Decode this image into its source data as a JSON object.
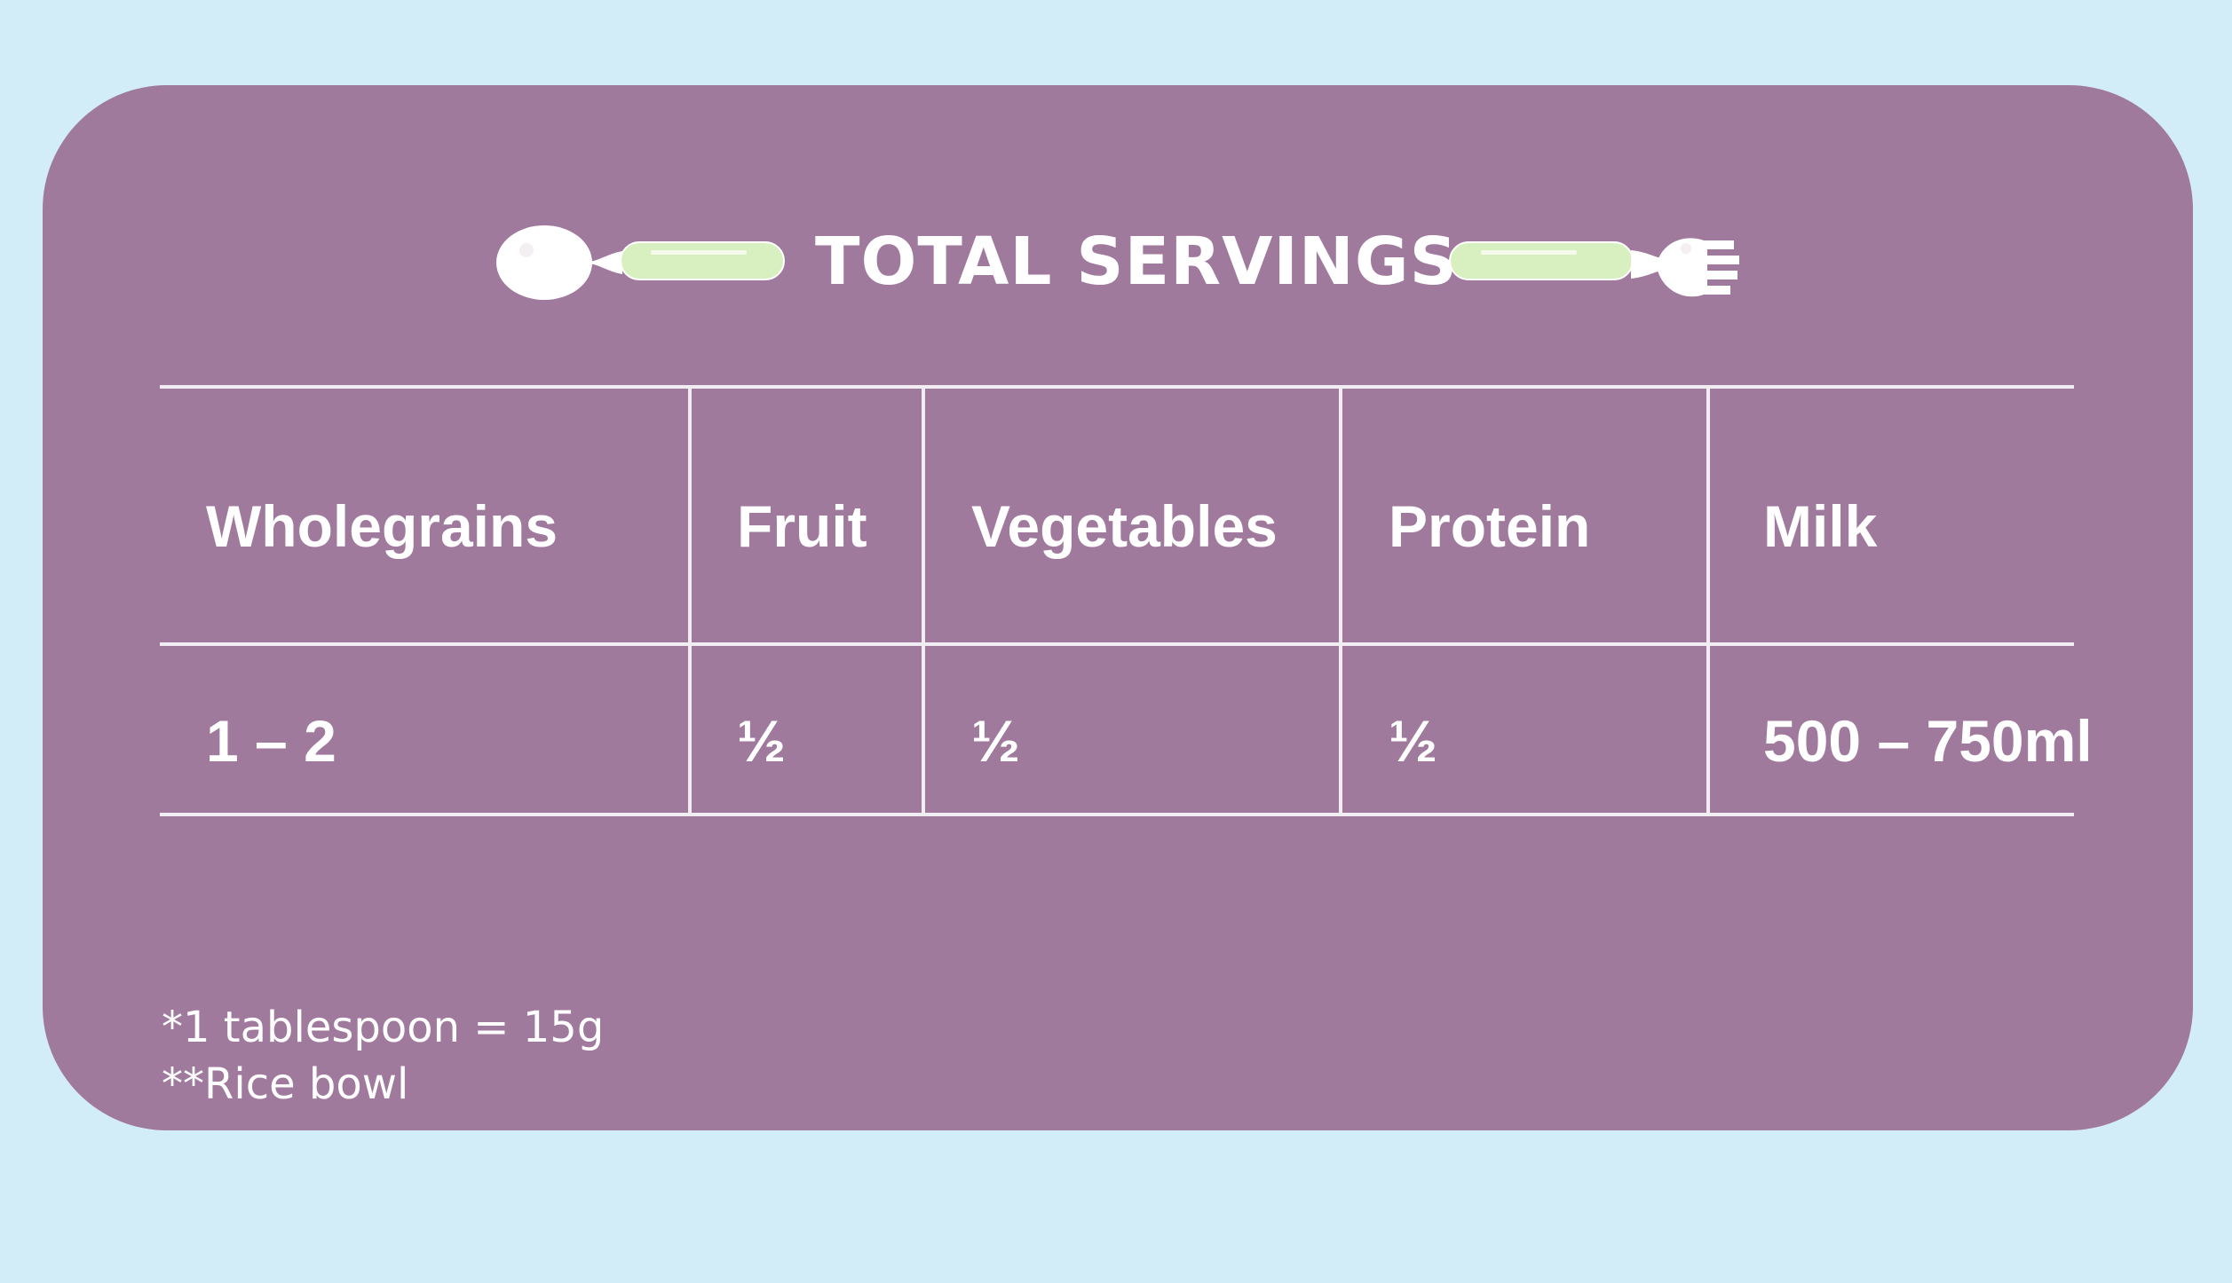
{
  "colors": {
    "background": "#d3edf8",
    "card": "#a07a9d",
    "text": "#ffffff",
    "lines": "#f2edf3",
    "handle": "#d8efbf",
    "utensil": "#ffffff"
  },
  "header": {
    "title": "TOTAL SERVINGS",
    "left_icon": "spoon-icon",
    "right_icon": "fork-icon"
  },
  "table": {
    "columns": [
      "Wholegrains",
      "Fruit",
      "Vegetables",
      "Protein",
      "Milk"
    ],
    "values": [
      "1 – 2",
      "½",
      "½",
      "½",
      "500 – 750ml"
    ]
  },
  "notes": [
    "*1 tablespoon = 15g",
    "**Rice bowl"
  ]
}
